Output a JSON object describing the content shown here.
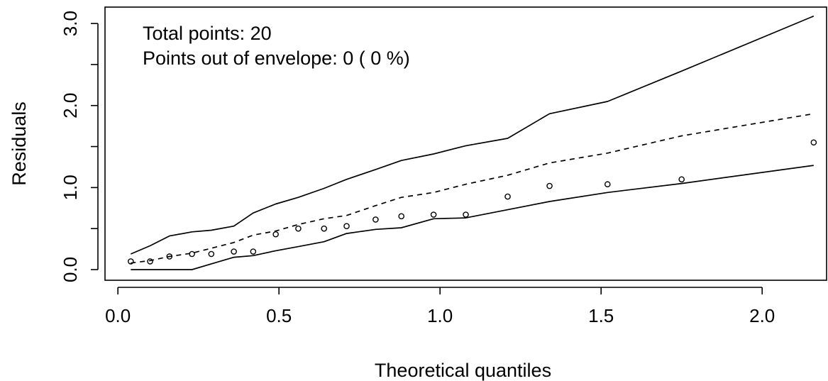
{
  "chart_data": {
    "type": "scatter",
    "title": "",
    "xlabel": "Theoretical quantiles",
    "ylabel": "Residuals",
    "xlim": [
      -0.04,
      2.2
    ],
    "ylim": [
      -0.13,
      3.2
    ],
    "x_ticks": [
      0.0,
      0.5,
      1.0,
      1.5,
      2.0
    ],
    "x_tick_labels": [
      "0.0",
      "0.5",
      "1.0",
      "1.5",
      "2.0"
    ],
    "y_ticks": [
      0.0,
      0.5,
      1.0,
      1.5,
      2.0,
      2.5,
      3.0
    ],
    "y_tick_labels": [
      "0.0",
      "",
      "1.0",
      "",
      "2.0",
      "",
      "3.0"
    ],
    "grid": false,
    "annotations": [
      "Total points: 20",
      "Points out of envelope: 0 ( 0 %)"
    ],
    "x": [
      0.04,
      0.1,
      0.16,
      0.23,
      0.29,
      0.36,
      0.42,
      0.49,
      0.56,
      0.64,
      0.71,
      0.8,
      0.88,
      0.98,
      1.08,
      1.21,
      1.34,
      1.52,
      1.75,
      2.16
    ],
    "series": [
      {
        "style": "points",
        "values": [
          0.1,
          0.1,
          0.16,
          0.19,
          0.19,
          0.22,
          0.22,
          0.43,
          0.5,
          0.5,
          0.53,
          0.61,
          0.65,
          0.67,
          0.67,
          0.89,
          1.02,
          1.04,
          1.1,
          1.55
        ]
      },
      {
        "style": "solid",
        "values": [
          0.19,
          0.29,
          0.41,
          0.46,
          0.48,
          0.53,
          0.69,
          0.8,
          0.88,
          0.99,
          1.1,
          1.22,
          1.33,
          1.41,
          1.51,
          1.6,
          1.9,
          2.05,
          2.42,
          3.09
        ]
      },
      {
        "style": "dashed",
        "values": [
          0.08,
          0.11,
          0.16,
          0.2,
          0.26,
          0.33,
          0.42,
          0.47,
          0.55,
          0.62,
          0.66,
          0.78,
          0.88,
          0.94,
          1.04,
          1.15,
          1.3,
          1.42,
          1.63,
          1.9
        ]
      },
      {
        "style": "solid",
        "values": [
          0.0,
          0.0,
          0.0,
          0.0,
          0.07,
          0.15,
          0.17,
          0.23,
          0.28,
          0.34,
          0.44,
          0.49,
          0.51,
          0.62,
          0.63,
          0.73,
          0.83,
          0.94,
          1.05,
          1.27
        ]
      }
    ]
  }
}
